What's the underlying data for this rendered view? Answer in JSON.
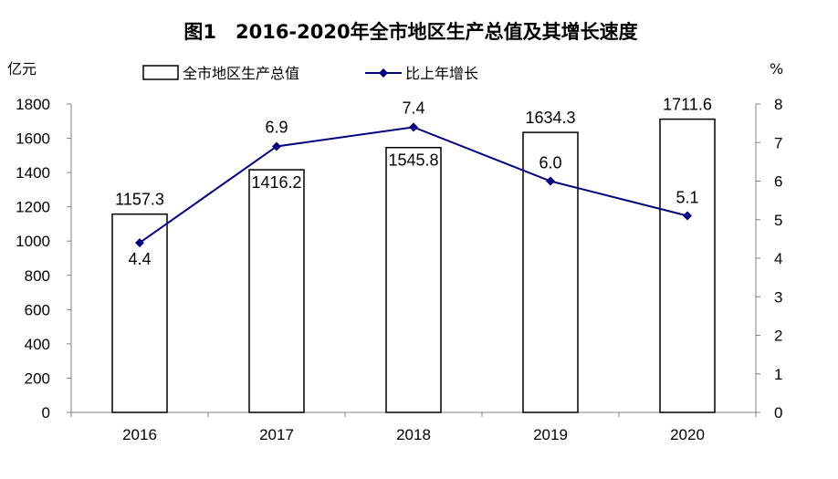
{
  "chart_data": {
    "type": "bar",
    "title": "图1　2016-2020年全市地区生产总值及其增长速度",
    "left_unit": "亿元",
    "right_unit": "%",
    "categories": [
      "2016",
      "2017",
      "2018",
      "2019",
      "2020"
    ],
    "series": [
      {
        "name": "全市地区生产总值",
        "type": "bar",
        "axis": "left",
        "values": [
          1157.3,
          1416.2,
          1545.8,
          1634.3,
          1711.6
        ],
        "labels": [
          "1157.3",
          "1416.2",
          "1545.8",
          "1634.3",
          "1711.6"
        ],
        "fill": "#ffffff",
        "stroke": "#000000"
      },
      {
        "name": "比上年增长",
        "type": "line",
        "axis": "right",
        "values": [
          4.4,
          6.9,
          7.4,
          6.0,
          5.1
        ],
        "labels": [
          "4.4",
          "6.9",
          "7.4",
          "6.0",
          "5.1"
        ],
        "color": "#000080",
        "marker": "diamond"
      }
    ],
    "y_left": {
      "min": 0,
      "max": 1800,
      "ticks": [
        "0",
        "200",
        "400",
        "600",
        "800",
        "1000",
        "1200",
        "1400",
        "1600",
        "1800"
      ]
    },
    "y_right": {
      "min": 0,
      "max": 8,
      "ticks": [
        "0",
        "1",
        "2",
        "3",
        "4",
        "5",
        "6",
        "7",
        "8"
      ]
    },
    "grid": false,
    "legend": "top"
  }
}
